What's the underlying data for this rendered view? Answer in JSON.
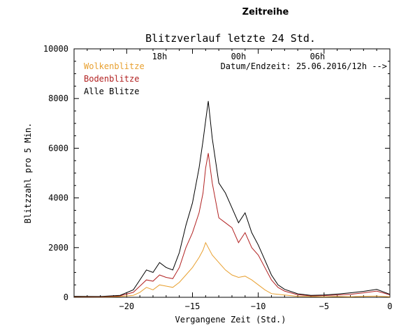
{
  "page": {
    "title": "Zeitreihe"
  },
  "chart_data": {
    "type": "line",
    "title": "Blitzverlauf letzte 24 Std.",
    "xlabel": "Vergangene Zeit (Std.)",
    "ylabel": "Blitzzahl pro 5 Min.",
    "xlim": [
      -24,
      0
    ],
    "ylim": [
      0,
      10000
    ],
    "x_ticks": [
      -20,
      -15,
      -10,
      -5,
      0
    ],
    "y_ticks": [
      0,
      2000,
      4000,
      6000,
      8000,
      10000
    ],
    "top_axis_ticks": [
      {
        "label": "18h",
        "x": -17.5
      },
      {
        "label": "00h",
        "x": -11.5
      },
      {
        "label": "06h",
        "x": -5.5
      }
    ],
    "annotation": "Datum/Endzeit: 25.06.2016/12h -->",
    "grid": false,
    "legend_position": "top-left",
    "series": [
      {
        "name": "Wolkenblitze",
        "color": "#e8a030",
        "points": [
          [
            -24,
            20
          ],
          [
            -22,
            10
          ],
          [
            -20.5,
            30
          ],
          [
            -19.5,
            80
          ],
          [
            -19,
            200
          ],
          [
            -18.5,
            400
          ],
          [
            -18,
            300
          ],
          [
            -17.5,
            500
          ],
          [
            -17,
            450
          ],
          [
            -16.5,
            400
          ],
          [
            -16,
            600
          ],
          [
            -15.5,
            900
          ],
          [
            -15,
            1200
          ],
          [
            -14.5,
            1600
          ],
          [
            -14.2,
            1900
          ],
          [
            -14,
            2200
          ],
          [
            -13.8,
            2000
          ],
          [
            -13.5,
            1700
          ],
          [
            -13,
            1400
          ],
          [
            -12.5,
            1100
          ],
          [
            -12,
            900
          ],
          [
            -11.5,
            800
          ],
          [
            -11,
            850
          ],
          [
            -10.5,
            700
          ],
          [
            -10,
            500
          ],
          [
            -9.5,
            300
          ],
          [
            -9,
            150
          ],
          [
            -8.5,
            120
          ],
          [
            -8,
            90
          ],
          [
            -7,
            40
          ],
          [
            -6,
            30
          ],
          [
            -5,
            20
          ],
          [
            -4,
            30
          ],
          [
            -3,
            20
          ],
          [
            -2,
            40
          ],
          [
            -1,
            50
          ],
          [
            0,
            20
          ]
        ]
      },
      {
        "name": "Bodenblitze",
        "color": "#b22222",
        "points": [
          [
            -24,
            30
          ],
          [
            -22,
            20
          ],
          [
            -20.5,
            60
          ],
          [
            -19.5,
            200
          ],
          [
            -19,
            450
          ],
          [
            -18.5,
            700
          ],
          [
            -18,
            650
          ],
          [
            -17.5,
            900
          ],
          [
            -17,
            800
          ],
          [
            -16.5,
            750
          ],
          [
            -16,
            1200
          ],
          [
            -15.5,
            2000
          ],
          [
            -15,
            2600
          ],
          [
            -14.5,
            3400
          ],
          [
            -14.2,
            4200
          ],
          [
            -14,
            5200
          ],
          [
            -13.8,
            5800
          ],
          [
            -13.5,
            4600
          ],
          [
            -13,
            3200
          ],
          [
            -12.5,
            3000
          ],
          [
            -12,
            2800
          ],
          [
            -11.5,
            2200
          ],
          [
            -11,
            2600
          ],
          [
            -10.5,
            2000
          ],
          [
            -10,
            1700
          ],
          [
            -9.5,
            1200
          ],
          [
            -9,
            700
          ],
          [
            -8.5,
            400
          ],
          [
            -8,
            250
          ],
          [
            -7,
            100
          ],
          [
            -6,
            60
          ],
          [
            -5,
            70
          ],
          [
            -4,
            90
          ],
          [
            -3,
            120
          ],
          [
            -2,
            180
          ],
          [
            -1,
            250
          ],
          [
            0,
            100
          ]
        ]
      },
      {
        "name": "Alle Blitze",
        "color": "#000000",
        "points": [
          [
            -24,
            40
          ],
          [
            -22,
            30
          ],
          [
            -20.5,
            80
          ],
          [
            -19.5,
            300
          ],
          [
            -19,
            700
          ],
          [
            -18.5,
            1100
          ],
          [
            -18,
            1000
          ],
          [
            -17.5,
            1400
          ],
          [
            -17,
            1200
          ],
          [
            -16.5,
            1100
          ],
          [
            -16,
            1800
          ],
          [
            -15.5,
            2900
          ],
          [
            -15,
            3800
          ],
          [
            -14.5,
            5200
          ],
          [
            -14.2,
            6300
          ],
          [
            -14,
            7100
          ],
          [
            -13.8,
            7900
          ],
          [
            -13.5,
            6400
          ],
          [
            -13,
            4600
          ],
          [
            -12.5,
            4200
          ],
          [
            -12,
            3600
          ],
          [
            -11.5,
            3000
          ],
          [
            -11,
            3400
          ],
          [
            -10.5,
            2600
          ],
          [
            -10,
            2100
          ],
          [
            -9.5,
            1500
          ],
          [
            -9,
            900
          ],
          [
            -8.5,
            500
          ],
          [
            -8,
            320
          ],
          [
            -7,
            140
          ],
          [
            -6,
            80
          ],
          [
            -5,
            90
          ],
          [
            -4,
            130
          ],
          [
            -3,
            180
          ],
          [
            -2,
            240
          ],
          [
            -1,
            320
          ],
          [
            0,
            120
          ]
        ]
      }
    ]
  }
}
